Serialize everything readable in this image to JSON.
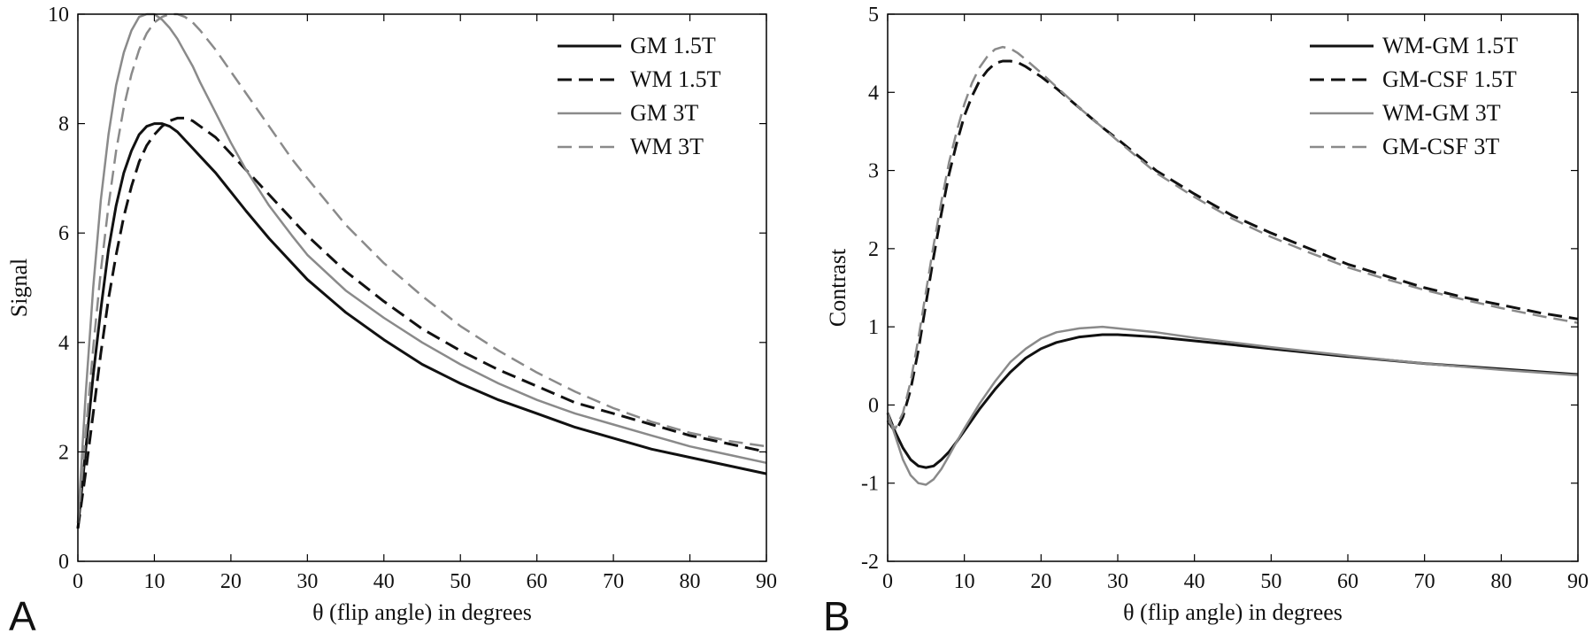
{
  "colors": {
    "black": "#111111",
    "gray": "#8a8a8a",
    "axis": "#000000"
  },
  "chart_data": [
    {
      "type": "line",
      "panel_label": "A",
      "xlabel": "θ (flip angle) in degrees",
      "ylabel": "Signal",
      "xlim": [
        0,
        90
      ],
      "ylim": [
        0,
        10
      ],
      "xticks": [
        "0",
        "10",
        "20",
        "30",
        "40",
        "50",
        "60",
        "70",
        "80",
        "90"
      ],
      "yticks": [
        "0",
        "2",
        "4",
        "6",
        "8",
        "10"
      ],
      "grid": false,
      "legend_position": "top-right",
      "series": [
        {
          "name": "GM 1.5T",
          "color": "black",
          "dash": "solid",
          "x": [
            0,
            1,
            2,
            3,
            4,
            5,
            6,
            7,
            8,
            9,
            10,
            11,
            12,
            13,
            14,
            15,
            16,
            18,
            20,
            22,
            25,
            28,
            30,
            35,
            40,
            45,
            50,
            55,
            60,
            65,
            70,
            75,
            80,
            85,
            90
          ],
          "y": [
            0.6,
            2.0,
            3.4,
            4.6,
            5.7,
            6.5,
            7.1,
            7.5,
            7.8,
            7.95,
            8.0,
            8.0,
            7.95,
            7.85,
            7.7,
            7.55,
            7.4,
            7.1,
            6.75,
            6.4,
            5.9,
            5.45,
            5.15,
            4.55,
            4.05,
            3.6,
            3.25,
            2.95,
            2.7,
            2.45,
            2.25,
            2.05,
            1.9,
            1.75,
            1.6
          ]
        },
        {
          "name": "WM 1.5T",
          "color": "black",
          "dash": "dashed",
          "x": [
            0,
            1,
            2,
            3,
            4,
            5,
            6,
            7,
            8,
            9,
            10,
            11,
            12,
            13,
            14,
            15,
            16,
            18,
            20,
            22,
            25,
            28,
            30,
            35,
            40,
            45,
            50,
            55,
            60,
            65,
            70,
            75,
            80,
            85,
            90
          ],
          "y": [
            0.6,
            1.6,
            2.7,
            3.8,
            4.8,
            5.6,
            6.3,
            6.85,
            7.3,
            7.6,
            7.8,
            7.95,
            8.05,
            8.1,
            8.1,
            8.05,
            7.95,
            7.75,
            7.45,
            7.15,
            6.7,
            6.25,
            5.95,
            5.3,
            4.75,
            4.25,
            3.85,
            3.5,
            3.2,
            2.9,
            2.7,
            2.5,
            2.3,
            2.15,
            2.0
          ]
        },
        {
          "name": "GM 3T",
          "color": "gray",
          "dash": "solid",
          "x": [
            0,
            1,
            2,
            3,
            4,
            5,
            6,
            7,
            8,
            9,
            10,
            11,
            12,
            13,
            14,
            15,
            16,
            18,
            20,
            22,
            25,
            28,
            30,
            35,
            40,
            45,
            50,
            55,
            60,
            65,
            70,
            75,
            80,
            85,
            90
          ],
          "y": [
            0.7,
            3.0,
            5.0,
            6.6,
            7.8,
            8.7,
            9.3,
            9.7,
            9.95,
            10.0,
            10.0,
            9.9,
            9.75,
            9.55,
            9.3,
            9.05,
            8.75,
            8.2,
            7.65,
            7.15,
            6.5,
            5.95,
            5.6,
            4.95,
            4.45,
            4.0,
            3.6,
            3.25,
            2.95,
            2.7,
            2.5,
            2.3,
            2.1,
            1.95,
            1.8
          ]
        },
        {
          "name": "WM 3T",
          "color": "gray",
          "dash": "dashed",
          "x": [
            0,
            1,
            2,
            3,
            4,
            5,
            6,
            7,
            8,
            9,
            10,
            11,
            12,
            13,
            14,
            15,
            16,
            18,
            20,
            22,
            25,
            28,
            30,
            35,
            40,
            45,
            50,
            55,
            60,
            65,
            70,
            75,
            80,
            85,
            90
          ],
          "y": [
            0.7,
            2.3,
            3.9,
            5.3,
            6.5,
            7.5,
            8.3,
            8.9,
            9.35,
            9.65,
            9.85,
            9.95,
            10.0,
            10.0,
            9.95,
            9.85,
            9.7,
            9.35,
            8.95,
            8.55,
            7.95,
            7.35,
            7.0,
            6.15,
            5.45,
            4.85,
            4.3,
            3.85,
            3.45,
            3.1,
            2.8,
            2.55,
            2.35,
            2.2,
            2.1
          ]
        }
      ]
    },
    {
      "type": "line",
      "panel_label": "B",
      "xlabel": "θ (flip angle) in degrees",
      "ylabel": "Contrast",
      "xlim": [
        0,
        90
      ],
      "ylim": [
        -2,
        5
      ],
      "xticks": [
        "0",
        "10",
        "20",
        "30",
        "40",
        "50",
        "60",
        "70",
        "80",
        "90"
      ],
      "yticks": [
        "-2",
        "-1",
        "0",
        "1",
        "2",
        "3",
        "4",
        "5"
      ],
      "grid": false,
      "legend_position": "top-right",
      "series": [
        {
          "name": "WM-GM 1.5T",
          "color": "black",
          "dash": "solid",
          "x": [
            0,
            1,
            2,
            3,
            4,
            5,
            6,
            7,
            8,
            9,
            10,
            12,
            14,
            16,
            18,
            20,
            22,
            25,
            28,
            30,
            35,
            40,
            45,
            50,
            60,
            70,
            80,
            90
          ],
          "y": [
            -0.1,
            -0.35,
            -0.55,
            -0.7,
            -0.78,
            -0.8,
            -0.78,
            -0.7,
            -0.6,
            -0.47,
            -0.33,
            -0.05,
            0.2,
            0.42,
            0.6,
            0.72,
            0.8,
            0.87,
            0.9,
            0.9,
            0.87,
            0.82,
            0.77,
            0.72,
            0.62,
            0.53,
            0.46,
            0.39
          ]
        },
        {
          "name": "GM-CSF 1.5T",
          "color": "black",
          "dash": "dashed",
          "x": [
            0,
            1,
            2,
            3,
            4,
            5,
            6,
            7,
            8,
            9,
            10,
            11,
            12,
            13,
            14,
            15,
            16,
            17,
            18,
            20,
            22,
            25,
            28,
            30,
            35,
            40,
            45,
            50,
            55,
            60,
            65,
            70,
            75,
            80,
            85,
            90
          ],
          "y": [
            -0.2,
            -0.35,
            -0.15,
            0.2,
            0.7,
            1.3,
            1.9,
            2.45,
            2.95,
            3.35,
            3.7,
            3.95,
            4.15,
            4.28,
            4.37,
            4.4,
            4.4,
            4.38,
            4.33,
            4.2,
            4.05,
            3.8,
            3.55,
            3.4,
            3.0,
            2.7,
            2.42,
            2.2,
            2.0,
            1.8,
            1.65,
            1.5,
            1.38,
            1.28,
            1.18,
            1.1
          ]
        },
        {
          "name": "WM-GM 3T",
          "color": "gray",
          "dash": "solid",
          "x": [
            0,
            1,
            2,
            3,
            4,
            5,
            6,
            7,
            8,
            9,
            10,
            12,
            14,
            16,
            18,
            20,
            22,
            25,
            28,
            30,
            35,
            40,
            45,
            50,
            60,
            70,
            80,
            90
          ],
          "y": [
            -0.1,
            -0.4,
            -0.7,
            -0.9,
            -1.0,
            -1.02,
            -0.95,
            -0.82,
            -0.65,
            -0.47,
            -0.3,
            0.02,
            0.3,
            0.55,
            0.72,
            0.85,
            0.93,
            0.98,
            1.0,
            0.98,
            0.93,
            0.86,
            0.8,
            0.74,
            0.63,
            0.53,
            0.45,
            0.38
          ]
        },
        {
          "name": "GM-CSF 3T",
          "color": "gray",
          "dash": "dashed",
          "x": [
            0,
            1,
            2,
            3,
            4,
            5,
            6,
            7,
            8,
            9,
            10,
            11,
            12,
            13,
            14,
            15,
            16,
            17,
            18,
            20,
            22,
            25,
            28,
            30,
            35,
            40,
            45,
            50,
            55,
            60,
            65,
            70,
            75,
            80,
            85,
            90
          ],
          "y": [
            -0.2,
            -0.3,
            -0.1,
            0.3,
            0.85,
            1.45,
            2.05,
            2.6,
            3.1,
            3.5,
            3.85,
            4.12,
            4.32,
            4.46,
            4.55,
            4.58,
            4.56,
            4.5,
            4.42,
            4.25,
            4.07,
            3.8,
            3.55,
            3.38,
            2.97,
            2.66,
            2.38,
            2.15,
            1.95,
            1.76,
            1.61,
            1.47,
            1.35,
            1.24,
            1.14,
            1.05
          ]
        }
      ]
    }
  ]
}
